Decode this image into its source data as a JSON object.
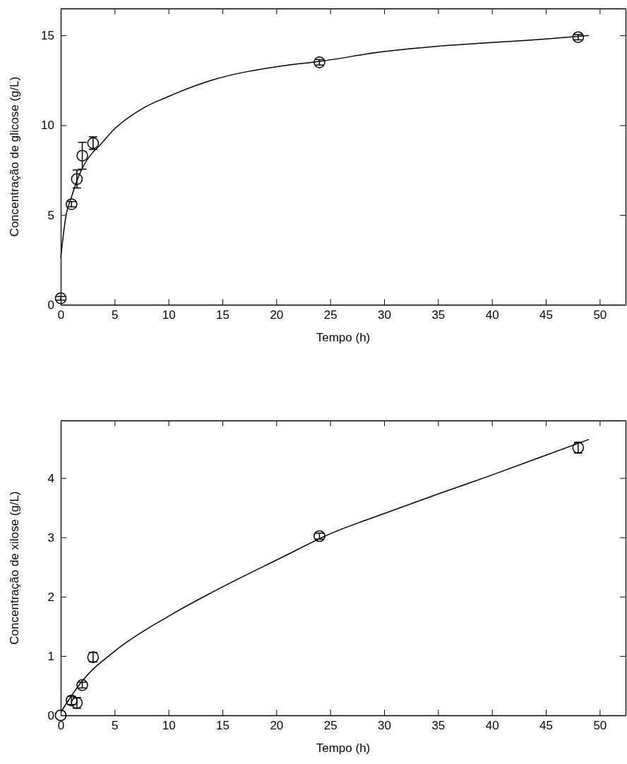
{
  "chart_data": [
    {
      "type": "scatter",
      "xlabel": "Tempo (h)",
      "ylabel": "Concentração de glicose (g/L)",
      "xlim": [
        0,
        52.4
      ],
      "ylim": [
        0,
        16.5
      ],
      "xticks": [
        0,
        5,
        10,
        15,
        20,
        25,
        30,
        35,
        40,
        45,
        50
      ],
      "yticks": [
        0,
        5,
        10,
        15
      ],
      "grid": false,
      "series": [
        {
          "color": "#000000",
          "marker": "circle",
          "x": [
            0,
            1,
            1.5,
            2,
            3,
            24,
            48
          ],
          "values": [
            0.36,
            5.6,
            7.0,
            8.3,
            9.0,
            13.5,
            14.9
          ],
          "errors": [
            0.1,
            0.15,
            0.5,
            0.75,
            0.35,
            0.15,
            0.15
          ]
        },
        {
          "type": "line",
          "color": "#000000",
          "line_style": "solid",
          "x": [
            0,
            0.5,
            1,
            1.5,
            2,
            3,
            3.5,
            5,
            7.5,
            10,
            14,
            20.5,
            24,
            30,
            35,
            40,
            45,
            49
          ],
          "values": [
            2.6,
            5.0,
            6.0,
            6.9,
            7.6,
            8.5,
            8.8,
            9.8,
            10.9,
            11.6,
            12.5,
            13.3,
            13.55,
            14.1,
            14.4,
            14.6,
            14.8,
            15.0
          ]
        }
      ]
    },
    {
      "type": "scatter",
      "xlabel": "Tempo (h)",
      "ylabel": "Concentração de xilose (g/L)",
      "xlim": [
        0,
        52.4
      ],
      "ylim": [
        0,
        4.97
      ],
      "xticks": [
        0,
        5,
        10,
        15,
        20,
        25,
        30,
        35,
        40,
        45,
        50
      ],
      "yticks": [
        0,
        1,
        2,
        3,
        4
      ],
      "grid": false,
      "series": [
        {
          "color": "#000000",
          "marker": "circle",
          "x": [
            0,
            1,
            1.5,
            2,
            3,
            24,
            48
          ],
          "values": [
            0.0,
            0.25,
            0.21,
            0.51,
            0.98,
            3.02,
            4.51
          ],
          "errors": [
            null,
            0.07,
            0.09,
            0.05,
            0.08,
            0.05,
            0.09
          ]
        },
        {
          "type": "line",
          "color": "#000000",
          "line_style": "solid",
          "x": [
            0,
            1,
            2,
            5,
            10,
            14,
            20.5,
            25,
            30,
            35,
            40,
            49
          ],
          "values": [
            0.05,
            0.33,
            0.58,
            1.08,
            1.67,
            2.07,
            2.66,
            3.06,
            3.4,
            3.73,
            4.05,
            4.65
          ]
        }
      ]
    }
  ]
}
